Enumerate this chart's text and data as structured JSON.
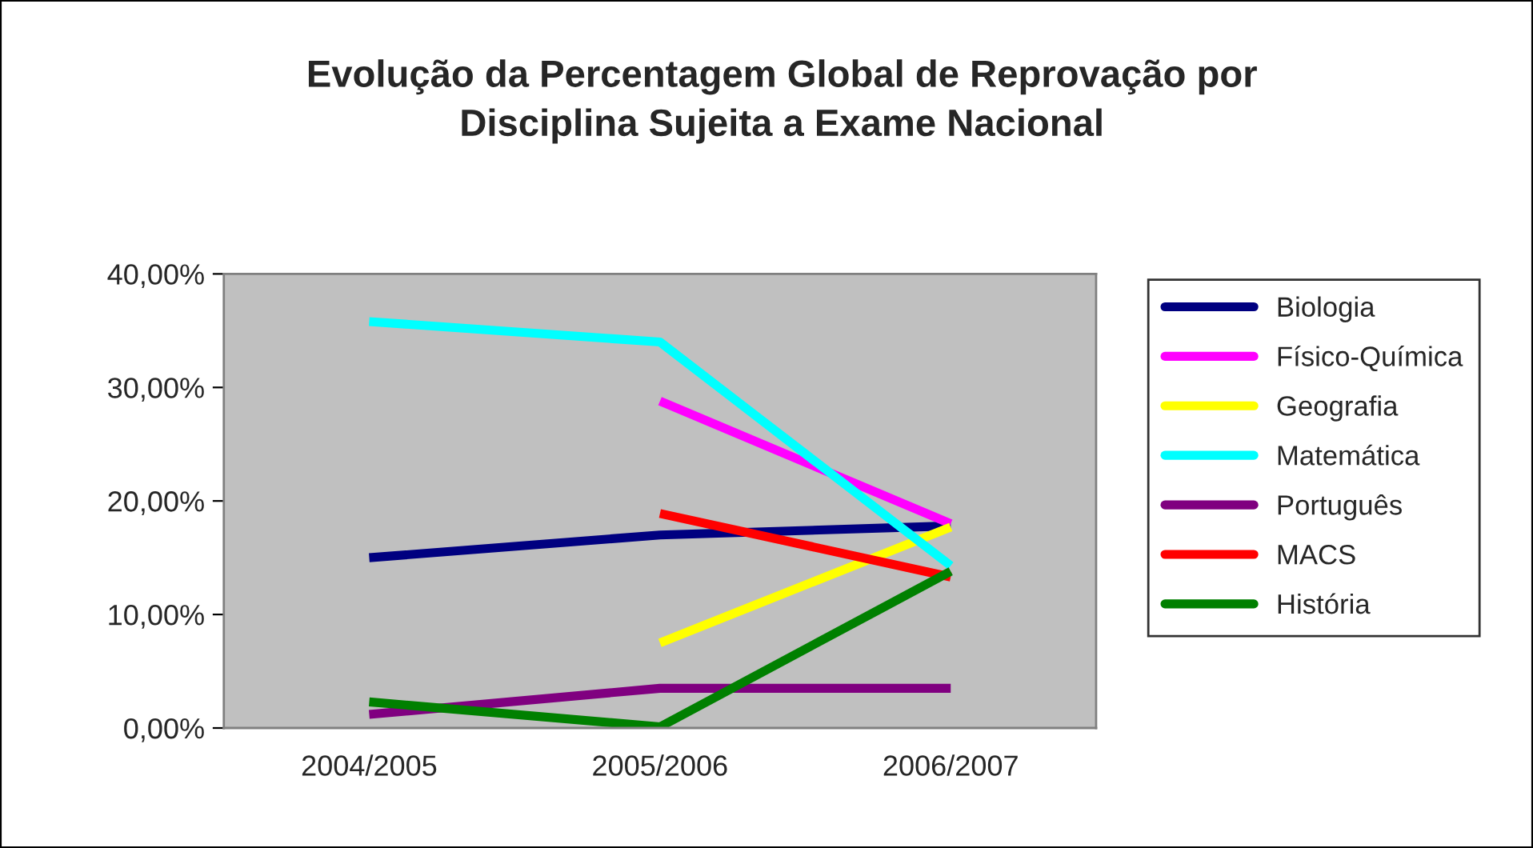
{
  "chart_data": {
    "type": "line",
    "title": "Evolução da Percentagem Global de Reprovação por\nDisciplina Sujeita a Exame Nacional",
    "categories": [
      "2004/2005",
      "2005/2006",
      "2006/2007"
    ],
    "series": [
      {
        "name": "Biologia",
        "color": "#000080",
        "values": [
          15.0,
          17.0,
          17.8
        ]
      },
      {
        "name": "Físico-Química",
        "color": "#ff00ff",
        "values": [
          null,
          28.8,
          18.0
        ]
      },
      {
        "name": "Geografia",
        "color": "#ffff00",
        "values": [
          null,
          7.5,
          17.7
        ]
      },
      {
        "name": "Matemática",
        "color": "#00ffff",
        "values": [
          35.8,
          34.0,
          14.3
        ]
      },
      {
        "name": "Português",
        "color": "#800080",
        "values": [
          1.2,
          3.5,
          3.5
        ]
      },
      {
        "name": "MACS",
        "color": "#ff0000",
        "values": [
          null,
          18.9,
          13.3
        ]
      },
      {
        "name": "História",
        "color": "#008000",
        "values": [
          2.3,
          0.1,
          13.8
        ]
      }
    ],
    "ylim": [
      0,
      40
    ],
    "yticks": [
      {
        "value": 0,
        "label": "0,00%"
      },
      {
        "value": 10,
        "label": "10,00%"
      },
      {
        "value": 20,
        "label": "20,00%"
      },
      {
        "value": 30,
        "label": "30,00%"
      },
      {
        "value": 40,
        "label": "40,00%"
      }
    ],
    "grid": false,
    "legend": "right",
    "marker": "none",
    "line_style": "solid"
  }
}
